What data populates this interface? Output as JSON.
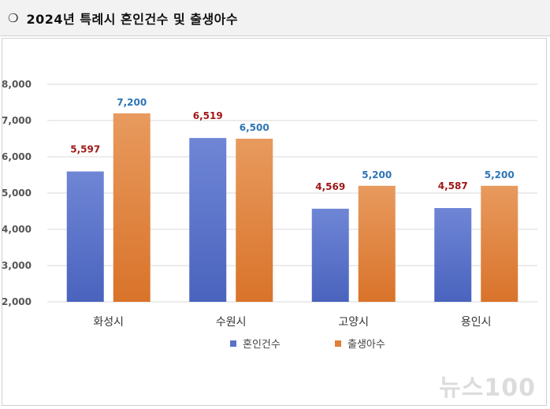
{
  "header": {
    "bullet": "❍",
    "title": "2024년 특례시 혼인건수 및 출생아수"
  },
  "watermark": "뉴스100",
  "chart_data": {
    "type": "bar",
    "title": "",
    "xlabel": "",
    "ylabel": "",
    "categories": [
      "화성시",
      "수원시",
      "고양시",
      "용인시"
    ],
    "series": [
      {
        "name": "혼인건수",
        "values": [
          5597,
          6519,
          4569,
          4587
        ],
        "labels": [
          "5,597",
          "6,519",
          "4,569",
          "4,587"
        ],
        "color": "#5a73c9",
        "label_color": "#a01818"
      },
      {
        "name": "출생아수",
        "values": [
          7200,
          6500,
          5200,
          5200
        ],
        "labels": [
          "7,200",
          "6,500",
          "5,200",
          "5,200"
        ],
        "color": "#e07f35",
        "label_color": "#2e75b6"
      }
    ],
    "ylim": [
      2000,
      8000
    ],
    "yticks": [
      2000,
      3000,
      4000,
      5000,
      6000,
      7000,
      8000
    ],
    "ytick_labels": [
      "2,000",
      "3,000",
      "4,000",
      "5,000",
      "6,000",
      "7,000",
      "8,000"
    ],
    "grid": true,
    "legend": "bottom"
  }
}
